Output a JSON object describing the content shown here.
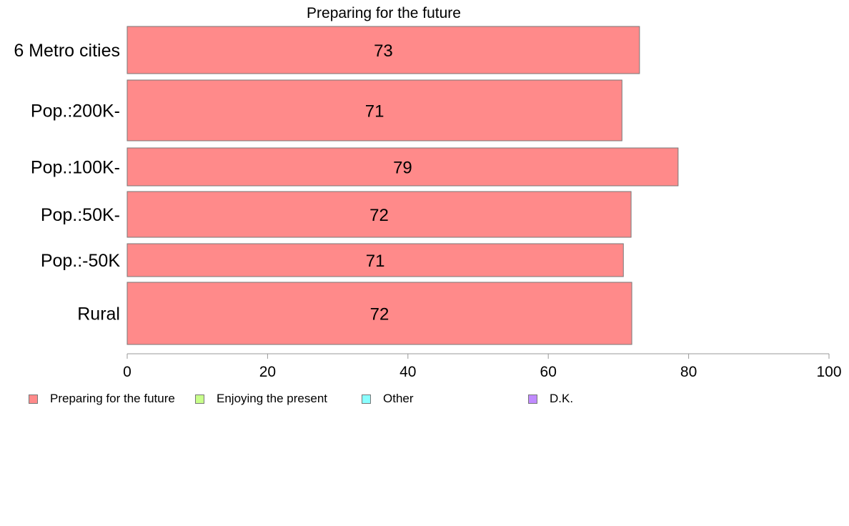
{
  "chart_data": {
    "type": "bar",
    "orientation": "horizontal",
    "title": "Preparing for the future",
    "categories": [
      "6 Metro cities",
      "Pop.:200K-",
      "Pop.:100K-",
      "Pop.:50K-",
      "Pop.:-50K",
      "Rural"
    ],
    "series": [
      {
        "name": "Preparing for the future",
        "values": [
          73,
          70.5,
          78.5,
          71.8,
          70.7,
          71.9
        ],
        "labels": [
          "73",
          "71",
          "79",
          "72",
          "71",
          "72"
        ],
        "color": "#ff8a8a"
      }
    ],
    "xlim": [
      0,
      100
    ],
    "xticks": [
      "0",
      "20",
      "40",
      "60",
      "80",
      "100"
    ],
    "legend": {
      "position": "bottom",
      "items": [
        {
          "label": "Preparing for the future",
          "color": "#ff8a8a"
        },
        {
          "label": "Enjoying the present",
          "color": "#c8ff8a"
        },
        {
          "label": "Other",
          "color": "#8affff"
        },
        {
          "label": "D.K.",
          "color": "#c08aff"
        }
      ]
    }
  }
}
